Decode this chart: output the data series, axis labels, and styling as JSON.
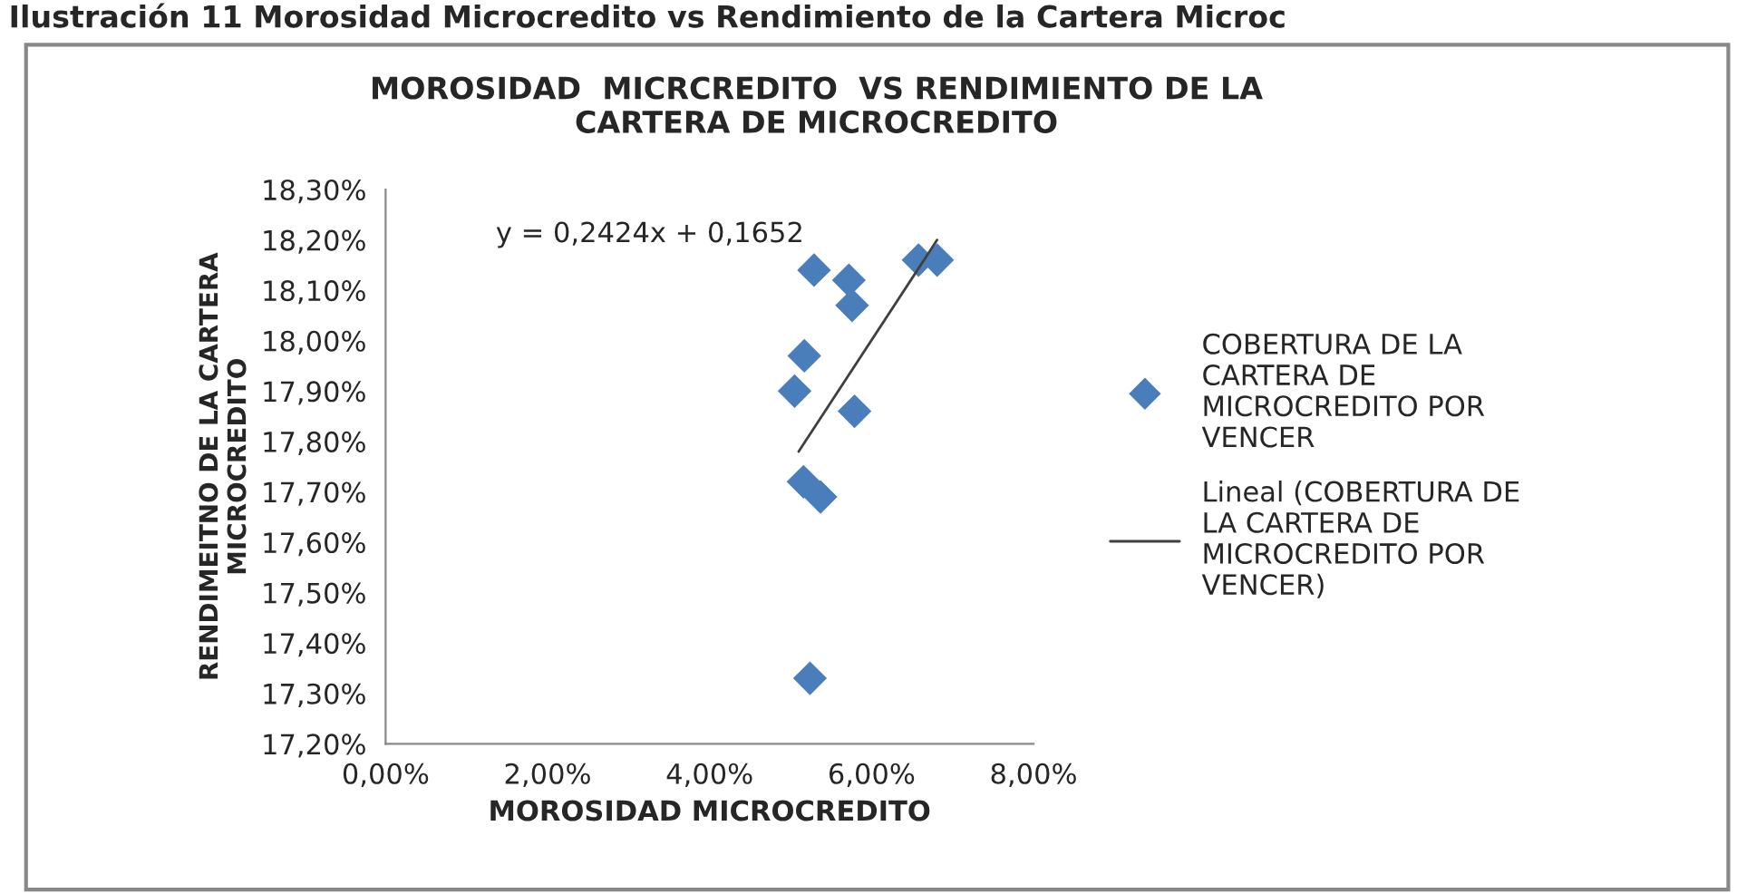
{
  "chart_data": {
    "type": "scatter",
    "title": "MOROSIDAD  MICRCREDITO  VS RENDIMIENTO DE LA\nCARTERA DE MICROCREDITO",
    "xlabel": "MOROSIDAD MICROCREDITO",
    "ylabel": "RENDIMEITNO DE LA CARTERA\nMICROCREDITO",
    "annotations": [
      "Ilustración 11 Morosidad Microcredito vs Rendimiento de la Cartera Microc",
      "y = 0,2424x + 0,1652"
    ],
    "series": [
      {
        "name": "COBERTURA DE LA\nCARTERA DE\nMICROCREDITO POR\nVENCER",
        "color": "#4a7ebb",
        "marker": "diamond",
        "x": [
          5.29,
          5.72,
          5.76,
          6.58,
          6.81,
          5.17,
          5.05,
          5.79,
          5.16,
          5.37,
          5.24
        ],
        "values": [
          18.14,
          18.12,
          18.07,
          18.16,
          18.16,
          17.97,
          17.9,
          17.86,
          17.72,
          17.69,
          17.33
        ]
      },
      {
        "name": "Lineal (COBERTURA DE\nLA CARTERA DE\nMICROCREDITO POR\nVENCER)",
        "type": "line",
        "color": "#404040",
        "marker": "none",
        "line_style": "solid",
        "x": [
          5.1,
          6.81
        ],
        "values": [
          17.78,
          18.2
        ]
      }
    ],
    "xlim": [
      0,
      8
    ],
    "xticks": [
      {
        "value": 0,
        "label": "0,00%"
      },
      {
        "value": 2,
        "label": "2,00%"
      },
      {
        "value": 4,
        "label": "4,00%"
      },
      {
        "value": 6,
        "label": "6,00%"
      },
      {
        "value": 8,
        "label": "8,00%"
      }
    ],
    "ylim": [
      17.2,
      18.3
    ],
    "yticks": [
      {
        "value": 17.2,
        "label": "17,20%"
      },
      {
        "value": 17.3,
        "label": "17,30%"
      },
      {
        "value": 17.4,
        "label": "17,40%"
      },
      {
        "value": 17.5,
        "label": "17,50%"
      },
      {
        "value": 17.6,
        "label": "17,60%"
      },
      {
        "value": 17.7,
        "label": "17,70%"
      },
      {
        "value": 17.8,
        "label": "17,80%"
      },
      {
        "value": 17.9,
        "label": "17,90%"
      },
      {
        "value": 18.0,
        "label": "18,00%"
      },
      {
        "value": 18.1,
        "label": "18,10%"
      },
      {
        "value": 18.2,
        "label": "18,20%"
      },
      {
        "value": 18.3,
        "label": "18,30%"
      }
    ],
    "grid": false,
    "legend": "right"
  }
}
